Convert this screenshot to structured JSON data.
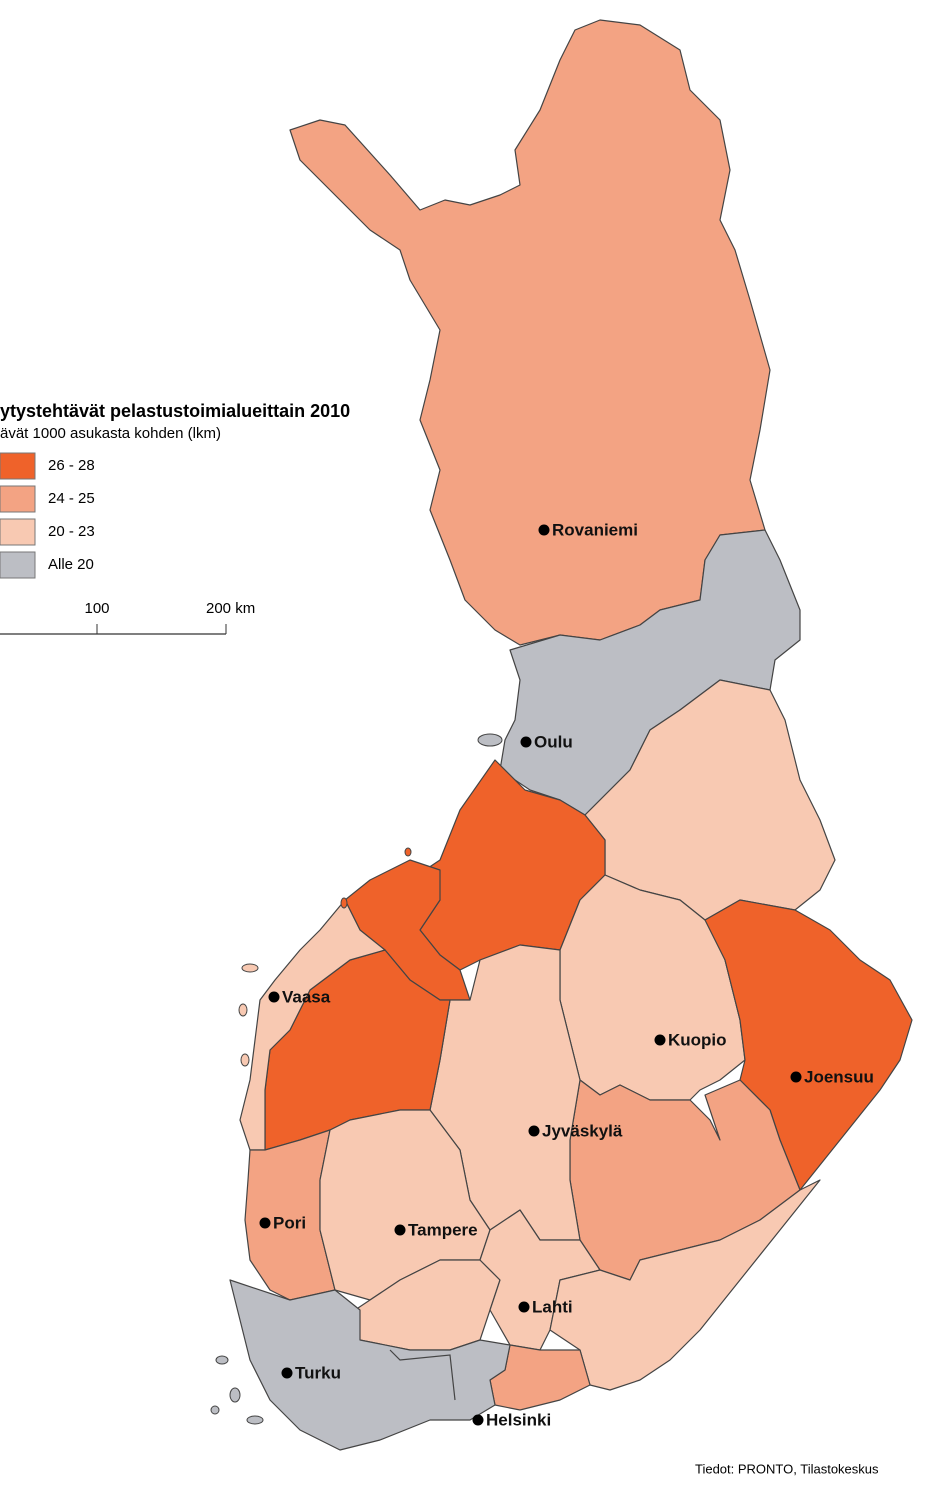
{
  "header": {
    "title": "ytystehtävät pelastustoimialueittain 2010",
    "subtitle": "ävät 1000 asukasta kohden (lkm)"
  },
  "legend": {
    "items": [
      {
        "label": "26 - 28",
        "color": "#ef622a"
      },
      {
        "label": "24 - 25",
        "color": "#f3a383"
      },
      {
        "label": "20 - 23",
        "color": "#f8c9b2"
      },
      {
        "label": "Alle 20",
        "color": "#bcbec4"
      }
    ]
  },
  "scale": {
    "labels": [
      "100",
      "200 km"
    ]
  },
  "cities": [
    "Rovaniemi",
    "Oulu",
    "Vaasa",
    "Kuopio",
    "Joensuu",
    "Jyväskylä",
    "Pori",
    "Tampere",
    "Lahti",
    "Turku",
    "Helsinki"
  ],
  "source": "Tiedot: PRONTO, Tilastokeskus"
}
